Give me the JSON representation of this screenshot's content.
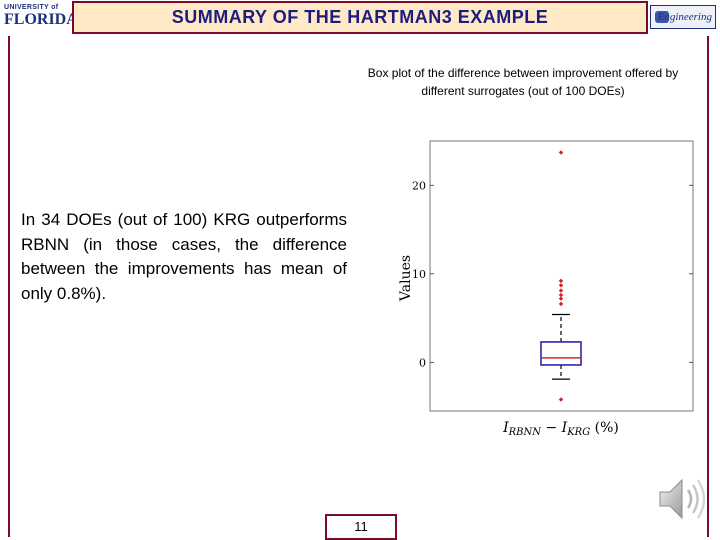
{
  "header": {
    "title": "SUMMARY OF THE HARTMAN3 EXAMPLE"
  },
  "logos": {
    "left_top": "UNIVERSITY of",
    "left_main": "FLORIDA",
    "right": "Engineering"
  },
  "caption": "Box plot of the difference between improvement offered by different surrogates (out of 100 DOEs)",
  "body_text": "In 34 DOEs (out of 100) KRG outperforms RBNN (in those cases, the difference between the improvements has mean of only 0.8%).",
  "page_number": "11",
  "icons": {
    "audio": "speaker-icon"
  },
  "colors": {
    "title_bg": "#ffe9c6",
    "title_text": "#1d1d80",
    "frame": "#7a0a2a",
    "box": "#1a1aa6",
    "median": "#e0242a",
    "outlier": "#d62020"
  },
  "chart_data": {
    "type": "boxplot",
    "title": "",
    "xlabel": "I_RBNN − I_KRG (%)",
    "ylabel": "Values",
    "ylim": [
      -5.5,
      25
    ],
    "yticks": [
      0,
      10,
      20
    ],
    "grid": false,
    "series": [
      {
        "q1": -0.3,
        "median": 0.5,
        "q3": 2.3,
        "whisker_low": -1.9,
        "whisker_high": 5.4,
        "outliers": [
          23.7,
          9.2,
          8.7,
          8.1,
          7.6,
          7.2,
          6.6,
          -4.2
        ]
      }
    ]
  }
}
